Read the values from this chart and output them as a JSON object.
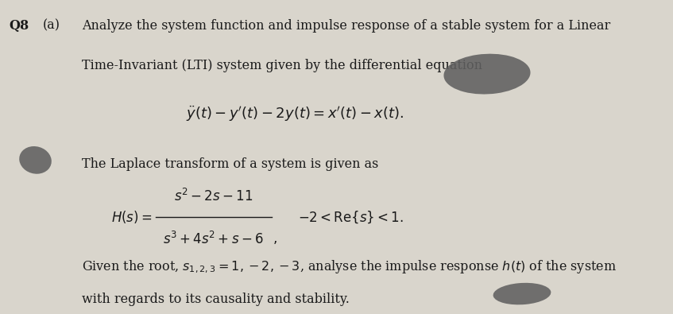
{
  "background_color": "#d9d5cc",
  "text_color": "#1a1a1a",
  "q_label": "Q8",
  "part_label": "(a)",
  "intro_text_line1": "Analyze the system function and impulse response of a stable system for a Linear",
  "intro_text_line2": "Time-Invariant (LTI) system given by the differential equation",
  "diff_eq": "$\\ddot{y}(t) - y'(t) - 2y(t) = x'(t) - x(t).$",
  "laplace_intro": "The Laplace transform of a system is given as",
  "numerator": "$s^2 - 2s - 11$",
  "denominator": "$s^3 + 4s^2 + s - 6$",
  "roc": "$-2 < \\mathrm{Re}\\{s\\} < 1.$",
  "final_line1": "Given the root, $s_{1,2,3} = 1, -2, -3$, analyse the impulse response $h(t)$ of the system",
  "final_line2": "with regards to its causality and stability.",
  "figsize": [
    8.47,
    3.95
  ],
  "dpi": 100
}
